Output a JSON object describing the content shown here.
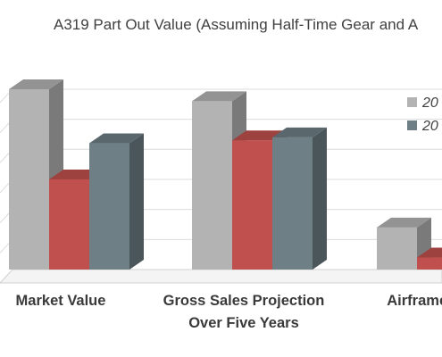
{
  "chart_data": {
    "type": "bar",
    "title": "A319 Part Out Value (Assuming Half-Time Gear and A",
    "categories": [
      [
        "Market Value"
      ],
      [
        "Gross Sales Projection",
        "Over Five Years"
      ],
      [
        "Airframe V"
      ]
    ],
    "series": [
      {
        "name": "20",
        "color": "#b3b3b3",
        "values": [
          6.0,
          5.6,
          1.4
        ]
      },
      {
        "name": "20",
        "color": "#c0504d",
        "values": [
          3.0,
          4.3,
          0.4
        ]
      },
      {
        "name": "20",
        "color": "#6e7f86",
        "values": [
          4.2,
          4.4,
          null
        ]
      }
    ],
    "ylim": [
      0,
      6.8
    ],
    "grid": true,
    "legend_position": "right",
    "bar_style": "3d"
  }
}
